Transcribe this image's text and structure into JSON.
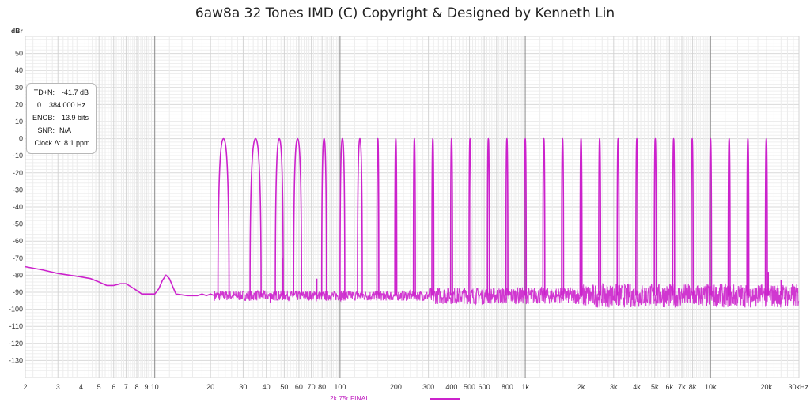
{
  "title": "6aw8a 32 Tones IMD (C) Copyright & Designed by Kenneth Lin",
  "stats": {
    "tdn_label": "TD+N:",
    "tdn_value": "-41.7 dB",
    "range": "0 .. 384,000 Hz",
    "enob_label": "ENOB:",
    "enob_value": "13.9 bits",
    "snr_label": "SNR:",
    "snr_value": "N/A",
    "clock_label": "Clock Δ:",
    "clock_value": "8.1 ppm"
  },
  "legend": {
    "series_label": "2k 75r FINAL",
    "color": "#cc22cc"
  },
  "chart_data": {
    "type": "line",
    "title": "6aw8a 32 Tones IMD (C) Copyright & Designed by Kenneth Lin",
    "xlabel": "",
    "ylabel": "dBr",
    "x_unit": "Hz",
    "xscale": "log",
    "xlim": [
      2,
      30000
    ],
    "ylim": [
      -140,
      60
    ],
    "grid": true,
    "legend_position": "bottom-center",
    "y_ticks": [
      50,
      40,
      30,
      20,
      10,
      0,
      -10,
      -20,
      -30,
      -40,
      -50,
      -60,
      -70,
      -80,
      -90,
      -100,
      -110,
      -120,
      -130
    ],
    "x_ticks": [
      {
        "v": 2,
        "label": "2"
      },
      {
        "v": 3,
        "label": "3"
      },
      {
        "v": 4,
        "label": "4"
      },
      {
        "v": 5,
        "label": "5"
      },
      {
        "v": 6,
        "label": "6"
      },
      {
        "v": 7,
        "label": "7"
      },
      {
        "v": 8,
        "label": "8"
      },
      {
        "v": 9,
        "label": "9"
      },
      {
        "v": 10,
        "label": "10"
      },
      {
        "v": 20,
        "label": "20"
      },
      {
        "v": 30,
        "label": "30"
      },
      {
        "v": 40,
        "label": "40"
      },
      {
        "v": 50,
        "label": "50"
      },
      {
        "v": 60,
        "label": "60"
      },
      {
        "v": 70,
        "label": "70"
      },
      {
        "v": 80,
        "label": "80"
      },
      {
        "v": 100,
        "label": "100"
      },
      {
        "v": 200,
        "label": "200"
      },
      {
        "v": 300,
        "label": "300"
      },
      {
        "v": 400,
        "label": "400"
      },
      {
        "v": 500,
        "label": "500"
      },
      {
        "v": 600,
        "label": "600"
      },
      {
        "v": 800,
        "label": "800"
      },
      {
        "v": 1000,
        "label": "1k"
      },
      {
        "v": 2000,
        "label": "2k"
      },
      {
        "v": 3000,
        "label": "3k"
      },
      {
        "v": 4000,
        "label": "4k"
      },
      {
        "v": 5000,
        "label": "5k"
      },
      {
        "v": 6000,
        "label": "6k"
      },
      {
        "v": 7000,
        "label": "7k"
      },
      {
        "v": 8000,
        "label": "8k"
      },
      {
        "v": 10000,
        "label": "10k"
      },
      {
        "v": 20000,
        "label": "20k"
      },
      {
        "v": 30000,
        "label": "30kHz"
      }
    ],
    "series": [
      {
        "name": "2k 75r FINAL",
        "color": "#cc22cc",
        "tones": [
          {
            "f": 23.5,
            "db": 0
          },
          {
            "f": 35,
            "db": 0
          },
          {
            "f": 47,
            "db": 0
          },
          {
            "f": 59,
            "db": 0
          },
          {
            "f": 82,
            "db": 0
          },
          {
            "f": 103,
            "db": 0
          },
          {
            "f": 128,
            "db": 0
          },
          {
            "f": 160,
            "db": 0
          },
          {
            "f": 200,
            "db": 0
          },
          {
            "f": 252,
            "db": 0
          },
          {
            "f": 317,
            "db": 0
          },
          {
            "f": 400,
            "db": 0
          },
          {
            "f": 503,
            "db": 0
          },
          {
            "f": 632,
            "db": 0
          },
          {
            "f": 796,
            "db": 0
          },
          {
            "f": 1000,
            "db": 0
          },
          {
            "f": 1260,
            "db": 0
          },
          {
            "f": 1590,
            "db": 0
          },
          {
            "f": 2000,
            "db": 0
          },
          {
            "f": 2520,
            "db": 0
          },
          {
            "f": 3170,
            "db": 0
          },
          {
            "f": 4000,
            "db": 0
          },
          {
            "f": 5030,
            "db": 0
          },
          {
            "f": 6320,
            "db": 0
          },
          {
            "f": 7960,
            "db": 0
          },
          {
            "f": 10000,
            "db": 0
          },
          {
            "f": 12600,
            "db": 0
          },
          {
            "f": 15900,
            "db": 0
          },
          {
            "f": 20000,
            "db": 0
          }
        ],
        "floor": [
          {
            "f": 2,
            "db": -75
          },
          {
            "f": 2.5,
            "db": -77
          },
          {
            "f": 3,
            "db": -79
          },
          {
            "f": 4,
            "db": -81
          },
          {
            "f": 4.5,
            "db": -82
          },
          {
            "f": 5,
            "db": -84
          },
          {
            "f": 5.5,
            "db": -86
          },
          {
            "f": 6,
            "db": -86
          },
          {
            "f": 6.5,
            "db": -85
          },
          {
            "f": 7,
            "db": -85
          },
          {
            "f": 7.5,
            "db": -87
          },
          {
            "f": 8,
            "db": -89
          },
          {
            "f": 8.5,
            "db": -91
          },
          {
            "f": 9,
            "db": -91
          },
          {
            "f": 10,
            "db": -91
          },
          {
            "f": 10.5,
            "db": -88
          },
          {
            "f": 11,
            "db": -83
          },
          {
            "f": 11.5,
            "db": -80
          },
          {
            "f": 12,
            "db": -82
          },
          {
            "f": 13,
            "db": -91
          },
          {
            "f": 15,
            "db": -92
          },
          {
            "f": 17,
            "db": -92
          },
          {
            "f": 18,
            "db": -91
          },
          {
            "f": 19,
            "db": -92
          },
          {
            "f": 20,
            "db": -91
          },
          {
            "f": 21,
            "db": -92
          }
        ],
        "noise_floor_db": -92,
        "spurs": [
          {
            "f": 42,
            "db": -96
          },
          {
            "f": 49,
            "db": -70
          },
          {
            "f": 75,
            "db": -82
          },
          {
            "f": 20500,
            "db": -78
          },
          {
            "f": 24000,
            "db": -83
          }
        ]
      }
    ]
  }
}
